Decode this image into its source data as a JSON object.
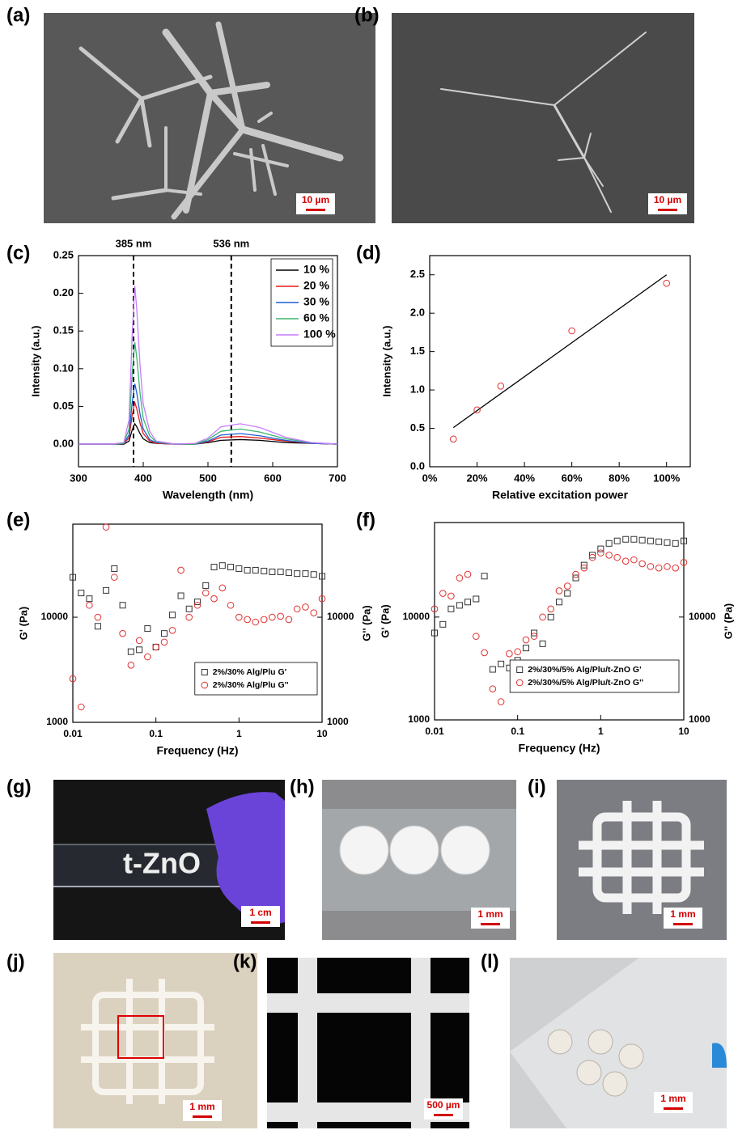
{
  "panel_labels": [
    "(a)",
    "(b)",
    "(c)",
    "(d)",
    "(e)",
    "(f)",
    "(g)",
    "(h)",
    "(i)",
    "(j)",
    "(k)",
    "(l)"
  ],
  "scale_bars": [
    "10 µm",
    "10 µm",
    "1 cm",
    "1 mm",
    "1 mm",
    "1 mm",
    "500 µm",
    "1 mm"
  ],
  "photo_text": "t-ZnO",
  "chart_data": [
    {
      "type": "line",
      "x_label": "Wavelength (nm)",
      "y_label": "Intensity (a.u.)",
      "x": [
        300,
        350,
        370,
        378,
        383,
        387,
        390,
        395,
        400,
        410,
        420,
        450,
        480,
        500,
        520,
        550,
        580,
        620,
        660,
        700
      ],
      "xlim": [
        300,
        700
      ],
      "xticks": [
        300,
        400,
        500,
        600,
        700
      ],
      "ylim": [
        -0.03,
        0.25
      ],
      "yticks": [
        {
          "value": 0,
          "label": "0.00"
        },
        0.05,
        {
          "value": 0.1,
          "label": "0.10"
        },
        0.15,
        {
          "value": 0.2,
          "label": "0.20"
        },
        0.25
      ],
      "reference_lines": [
        {
          "x": 385,
          "label": "385 nm"
        },
        {
          "x": 536,
          "label": "536 nm"
        }
      ],
      "legend": "upper right",
      "series": [
        {
          "name": "10 %",
          "color": "#000000",
          "values": [
            0,
            0,
            0,
            0.004,
            0.019,
            0.027,
            0.023,
            0.014,
            0.007,
            0.002,
            0.001,
            0,
            0,
            0.002,
            0.005,
            0.006,
            0.005,
            0.002,
            0.001,
            0
          ]
        },
        {
          "name": "20 %",
          "color": "#e31a1c",
          "values": [
            0,
            0,
            0.001,
            0.008,
            0.039,
            0.055,
            0.047,
            0.028,
            0.014,
            0.004,
            0.001,
            0,
            0,
            0.003,
            0.009,
            0.01,
            0.008,
            0.004,
            0.001,
            0
          ]
        },
        {
          "name": "30 %",
          "color": "#1f5fd6",
          "values": [
            0,
            0,
            0.001,
            0.012,
            0.056,
            0.08,
            0.068,
            0.04,
            0.02,
            0.006,
            0.002,
            0,
            0,
            0.004,
            0.012,
            0.014,
            0.011,
            0.005,
            0.001,
            0
          ]
        },
        {
          "name": "60 %",
          "color": "#3cb371",
          "values": [
            0,
            0,
            0.001,
            0.02,
            0.095,
            0.135,
            0.115,
            0.068,
            0.034,
            0.011,
            0.003,
            0,
            0,
            0.006,
            0.017,
            0.02,
            0.016,
            0.007,
            0.002,
            0
          ]
        },
        {
          "name": "100 %",
          "color": "#c77dff",
          "values": [
            0,
            0,
            0.002,
            0.032,
            0.147,
            0.21,
            0.179,
            0.105,
            0.053,
            0.017,
            0.004,
            0,
            0.001,
            0.008,
            0.023,
            0.027,
            0.022,
            0.009,
            0.002,
            0
          ]
        }
      ]
    },
    {
      "type": "scatter",
      "x_label": "Relative excitation power",
      "y_label": "Intensity (a.u.)",
      "x": [
        10,
        20,
        30,
        60,
        100
      ],
      "values": [
        0.36,
        0.74,
        1.05,
        1.77,
        2.39
      ],
      "color": "#e03030",
      "fit": {
        "x": [
          10,
          100
        ],
        "values": [
          0.51,
          2.5
        ],
        "color": "#000000"
      },
      "xlim": [
        0,
        110
      ],
      "xticks": [
        {
          "value": 0,
          "label": "0%"
        },
        {
          "value": 20,
          "label": "20%"
        },
        {
          "value": 40,
          "label": "40%"
        },
        {
          "value": 60,
          "label": "60%"
        },
        {
          "value": 80,
          "label": "80%"
        },
        {
          "value": 100,
          "label": "100%"
        }
      ],
      "ylim": [
        0,
        2.75
      ],
      "yticks": [
        {
          "value": 0,
          "label": "0.0"
        },
        0.5,
        {
          "value": 1,
          "label": "1.0"
        },
        1.5,
        {
          "value": 2,
          "label": "2.0"
        },
        2.5
      ]
    },
    {
      "type": "scatter",
      "x_label": "Frequency (Hz)",
      "y_label": "G' (Pa)",
      "y2_label": "G'' (Pa)",
      "xscale": "log",
      "yscale": "log",
      "x": [
        0.01,
        0.0126,
        0.0158,
        0.02,
        0.0251,
        0.0316,
        0.0398,
        0.0501,
        0.0631,
        0.0794,
        0.1,
        0.126,
        0.158,
        0.2,
        0.251,
        0.316,
        0.398,
        0.501,
        0.631,
        0.794,
        1,
        1.26,
        1.58,
        2,
        2.51,
        3.16,
        3.98,
        5.01,
        6.31,
        7.94,
        10
      ],
      "xlim": [
        0.01,
        10
      ],
      "xticks": [
        0.01,
        0.1,
        1,
        10
      ],
      "ylim": [
        1000,
        76800
      ],
      "yticks": [
        1000,
        10000
      ],
      "y2lim": [
        1000,
        76800
      ],
      "y2ticks": [
        1000,
        10000
      ],
      "legend": "lower right",
      "series": [
        {
          "name": "2%/30% Alg/Plu G'",
          "color": "#333333",
          "marker": "square",
          "values": [
            24000,
            17000,
            15000,
            8200,
            18000,
            29000,
            13000,
            4700,
            4900,
            7800,
            5200,
            7000,
            10500,
            16000,
            12000,
            14000,
            20000,
            30000,
            31000,
            30000,
            29000,
            28000,
            28000,
            27500,
            27000,
            27000,
            26500,
            26000,
            26000,
            25500,
            24500
          ]
        },
        {
          "name": "2%/30% Alg/Plu G''",
          "color": "#e03030",
          "marker": "circle",
          "axis": "y2",
          "values": [
            2600,
            1400,
            13000,
            10000,
            72000,
            24000,
            7000,
            3500,
            6000,
            4200,
            5200,
            5800,
            7500,
            28000,
            10000,
            13000,
            17000,
            15000,
            19000,
            13000,
            10000,
            9500,
            9000,
            9500,
            10000,
            10200,
            9500,
            12000,
            12500,
            11000,
            15000
          ]
        }
      ]
    },
    {
      "type": "scatter",
      "x_label": "Frequency (Hz)",
      "y_label": "G' (Pa)",
      "y2_label": "G'' (Pa)",
      "xscale": "log",
      "yscale": "log",
      "x": [
        0.01,
        0.0126,
        0.0158,
        0.02,
        0.0251,
        0.0316,
        0.0398,
        0.0501,
        0.0631,
        0.0794,
        0.1,
        0.126,
        0.158,
        0.2,
        0.251,
        0.316,
        0.398,
        0.501,
        0.631,
        0.794,
        1,
        1.26,
        1.58,
        2,
        2.51,
        3.16,
        3.98,
        5.01,
        6.31,
        7.94,
        10
      ],
      "xlim": [
        0.01,
        10
      ],
      "xticks": [
        0.01,
        0.1,
        1,
        10
      ],
      "ylim": [
        1000,
        83000
      ],
      "yticks": [
        1000,
        10000
      ],
      "y2lim": [
        1000,
        83000
      ],
      "y2ticks": [
        1000,
        10000
      ],
      "legend": "lower right",
      "series": [
        {
          "name": "2%/30%/5% Alg/Plu/t-ZnO G'",
          "color": "#333333",
          "marker": "square",
          "values": [
            7000,
            8500,
            12000,
            13000,
            14000,
            15000,
            25000,
            3100,
            3500,
            3200,
            3800,
            5000,
            7000,
            5500,
            10000,
            14000,
            17000,
            24000,
            32000,
            40000,
            46000,
            52000,
            55000,
            57000,
            57000,
            56000,
            55000,
            54000,
            53000,
            52000,
            55000
          ]
        },
        {
          "name": "2%/30%/5% Alg/Plu/t-ZnO G''",
          "color": "#e03030",
          "marker": "circle",
          "axis": "y2",
          "values": [
            12000,
            17000,
            16000,
            24000,
            26000,
            6500,
            4500,
            2000,
            1500,
            4400,
            4600,
            6000,
            6500,
            10000,
            12000,
            18000,
            20000,
            26000,
            30000,
            38000,
            42000,
            40000,
            38000,
            35000,
            36000,
            33000,
            31000,
            30000,
            31000,
            30000,
            34000
          ]
        }
      ]
    }
  ]
}
